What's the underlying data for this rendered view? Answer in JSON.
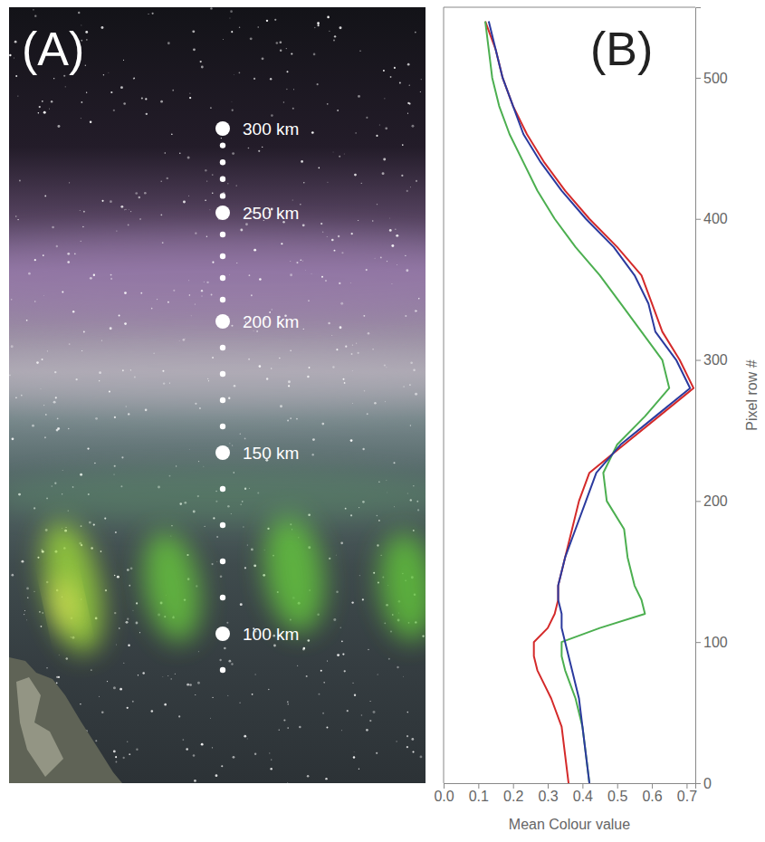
{
  "chart_data": [
    {
      "type": "photo",
      "panel_label": "(A)",
      "altitude_ticks": [
        {
          "value": 100,
          "label": "100 km"
        },
        {
          "value": 150,
          "label": "150 km"
        },
        {
          "value": 200,
          "label": "200 km"
        },
        {
          "value": 250,
          "label": "250 km"
        },
        {
          "value": 300,
          "label": "300 km"
        }
      ],
      "altitude_minor_ticks": [
        90,
        110,
        120,
        130,
        140,
        160,
        170,
        180,
        190,
        210,
        220,
        230,
        240,
        260,
        270,
        280,
        290
      ]
    },
    {
      "type": "line",
      "panel_label": "(B)",
      "orientation": "horizontal",
      "x_label": "Pixel row #",
      "y_label": "Mean Colour value",
      "x": [
        0,
        20,
        40,
        60,
        80,
        90,
        100,
        110,
        120,
        130,
        140,
        160,
        180,
        200,
        220,
        240,
        260,
        280,
        300,
        320,
        340,
        360,
        380,
        400,
        420,
        440,
        460,
        480,
        500,
        520,
        540
      ],
      "series": [
        {
          "color": "#d42a2a",
          "values": [
            0.36,
            0.35,
            0.34,
            0.31,
            0.27,
            0.26,
            0.26,
            0.3,
            0.32,
            0.33,
            0.33,
            0.35,
            0.37,
            0.39,
            0.42,
            0.52,
            0.62,
            0.72,
            0.68,
            0.63,
            0.6,
            0.57,
            0.5,
            0.42,
            0.35,
            0.29,
            0.24,
            0.2,
            0.17,
            0.15,
            0.12
          ]
        },
        {
          "color": "#4caf50",
          "values": [
            0.42,
            0.41,
            0.4,
            0.38,
            0.35,
            0.34,
            0.34,
            0.45,
            0.58,
            0.57,
            0.55,
            0.53,
            0.52,
            0.47,
            0.46,
            0.5,
            0.58,
            0.65,
            0.63,
            0.57,
            0.51,
            0.45,
            0.38,
            0.32,
            0.27,
            0.23,
            0.19,
            0.16,
            0.14,
            0.13,
            0.12
          ]
        },
        {
          "color": "#2b3a9e",
          "values": [
            0.42,
            0.41,
            0.4,
            0.39,
            0.37,
            0.36,
            0.35,
            0.34,
            0.34,
            0.33,
            0.33,
            0.35,
            0.38,
            0.41,
            0.44,
            0.51,
            0.61,
            0.71,
            0.67,
            0.61,
            0.59,
            0.55,
            0.49,
            0.41,
            0.34,
            0.28,
            0.23,
            0.2,
            0.17,
            0.15,
            0.13
          ]
        }
      ],
      "xlim": [
        0,
        550
      ],
      "xticks": [
        0,
        100,
        200,
        300,
        400,
        500
      ],
      "ylim": [
        0,
        0.725
      ],
      "yticks": [
        {
          "value": 0,
          "label": "0.0"
        },
        0.1,
        0.2,
        0.3,
        0.4,
        0.5,
        0.6,
        0.7
      ]
    }
  ]
}
